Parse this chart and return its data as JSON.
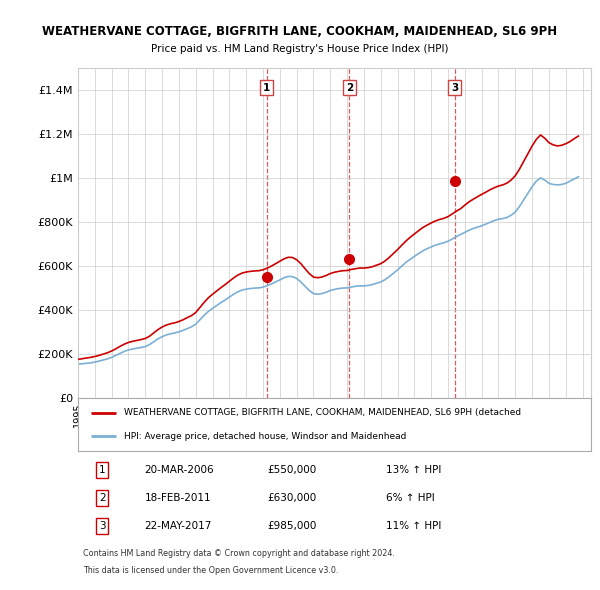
{
  "title": "WEATHERVANE COTTAGE, BIGFRITH LANE, COOKHAM, MAIDENHEAD, SL6 9PH",
  "subtitle": "Price paid vs. HM Land Registry's House Price Index (HPI)",
  "xlim_start": 1995.0,
  "xlim_end": 2025.5,
  "ylim": [
    0,
    1500000
  ],
  "yticks": [
    0,
    200000,
    400000,
    600000,
    800000,
    1000000,
    1200000,
    1400000
  ],
  "ytick_labels": [
    "£0",
    "£200K",
    "£400K",
    "£600K",
    "£800K",
    "£1M",
    "£1.2M",
    "£1.4M"
  ],
  "line_color_red": "#cc0000",
  "line_color_blue": "#7bafd4",
  "purchase_dates": [
    2006.22,
    2011.13,
    2017.39
  ],
  "purchase_prices": [
    550000,
    630000,
    985000
  ],
  "purchase_labels": [
    "1",
    "2",
    "3"
  ],
  "vline_color": "#cc4444",
  "grid_color": "#cccccc",
  "background_color": "#ffffff",
  "legend_label_red": "WEATHERVANE COTTAGE, BIGFRITH LANE, COOKHAM, MAIDENHEAD, SL6 9PH (detached",
  "legend_label_blue": "HPI: Average price, detached house, Windsor and Maidenhead",
  "table_rows": [
    [
      "1",
      "20-MAR-2006",
      "£550,000",
      "13% ↑ HPI"
    ],
    [
      "2",
      "18-FEB-2011",
      "£630,000",
      "6% ↑ HPI"
    ],
    [
      "3",
      "22-MAY-2017",
      "£985,000",
      "11% ↑ HPI"
    ]
  ],
  "footnote1": "Contains HM Land Registry data © Crown copyright and database right 2024.",
  "footnote2": "This data is licensed under the Open Government Licence v3.0.",
  "hpi_years": [
    1995.0,
    1995.25,
    1995.5,
    1995.75,
    1996.0,
    1996.25,
    1996.5,
    1996.75,
    1997.0,
    1997.25,
    1997.5,
    1997.75,
    1998.0,
    1998.25,
    1998.5,
    1998.75,
    1999.0,
    1999.25,
    1999.5,
    1999.75,
    2000.0,
    2000.25,
    2000.5,
    2000.75,
    2001.0,
    2001.25,
    2001.5,
    2001.75,
    2002.0,
    2002.25,
    2002.5,
    2002.75,
    2003.0,
    2003.25,
    2003.5,
    2003.75,
    2004.0,
    2004.25,
    2004.5,
    2004.75,
    2005.0,
    2005.25,
    2005.5,
    2005.75,
    2006.0,
    2006.25,
    2006.5,
    2006.75,
    2007.0,
    2007.25,
    2007.5,
    2007.75,
    2008.0,
    2008.25,
    2008.5,
    2008.75,
    2009.0,
    2009.25,
    2009.5,
    2009.75,
    2010.0,
    2010.25,
    2010.5,
    2010.75,
    2011.0,
    2011.25,
    2011.5,
    2011.75,
    2012.0,
    2012.25,
    2012.5,
    2012.75,
    2013.0,
    2013.25,
    2013.5,
    2013.75,
    2014.0,
    2014.25,
    2014.5,
    2014.75,
    2015.0,
    2015.25,
    2015.5,
    2015.75,
    2016.0,
    2016.25,
    2016.5,
    2016.75,
    2017.0,
    2017.25,
    2017.5,
    2017.75,
    2018.0,
    2018.25,
    2018.5,
    2018.75,
    2019.0,
    2019.25,
    2019.5,
    2019.75,
    2020.0,
    2020.25,
    2020.5,
    2020.75,
    2021.0,
    2021.25,
    2021.5,
    2021.75,
    2022.0,
    2022.25,
    2022.5,
    2022.75,
    2023.0,
    2023.25,
    2023.5,
    2023.75,
    2024.0,
    2024.25,
    2024.5,
    2024.75
  ],
  "hpi_values": [
    153000,
    155000,
    157000,
    159000,
    163000,
    167000,
    172000,
    177000,
    184000,
    193000,
    202000,
    211000,
    218000,
    222000,
    226000,
    229000,
    233000,
    242000,
    255000,
    268000,
    278000,
    286000,
    291000,
    295000,
    300000,
    307000,
    315000,
    323000,
    335000,
    355000,
    375000,
    393000,
    407000,
    420000,
    433000,
    445000,
    458000,
    471000,
    482000,
    490000,
    494000,
    497000,
    499000,
    500000,
    503000,
    510000,
    518000,
    527000,
    536000,
    546000,
    552000,
    551000,
    543000,
    527000,
    507000,
    488000,
    474000,
    471000,
    474000,
    480000,
    488000,
    493000,
    497000,
    499000,
    500000,
    504000,
    507000,
    509000,
    509000,
    511000,
    515000,
    521000,
    527000,
    537000,
    551000,
    566000,
    582000,
    599000,
    616000,
    630000,
    643000,
    656000,
    668000,
    678000,
    686000,
    694000,
    700000,
    705000,
    712000,
    722000,
    733000,
    743000,
    752000,
    762000,
    770000,
    776000,
    782000,
    790000,
    798000,
    806000,
    812000,
    815000,
    820000,
    830000,
    845000,
    870000,
    900000,
    930000,
    960000,
    985000,
    1000000,
    990000,
    975000,
    970000,
    968000,
    970000,
    975000,
    985000,
    995000,
    1005000
  ],
  "red_years": [
    1995.0,
    1995.25,
    1995.5,
    1995.75,
    1996.0,
    1996.25,
    1996.5,
    1996.75,
    1997.0,
    1997.25,
    1997.5,
    1997.75,
    1998.0,
    1998.25,
    1998.5,
    1998.75,
    1999.0,
    1999.25,
    1999.5,
    1999.75,
    2000.0,
    2000.25,
    2000.5,
    2000.75,
    2001.0,
    2001.25,
    2001.5,
    2001.75,
    2002.0,
    2002.25,
    2002.5,
    2002.75,
    2003.0,
    2003.25,
    2003.5,
    2003.75,
    2004.0,
    2004.25,
    2004.5,
    2004.75,
    2005.0,
    2005.25,
    2005.5,
    2005.75,
    2006.0,
    2006.25,
    2006.5,
    2006.75,
    2007.0,
    2007.25,
    2007.5,
    2007.75,
    2008.0,
    2008.25,
    2008.5,
    2008.75,
    2009.0,
    2009.25,
    2009.5,
    2009.75,
    2010.0,
    2010.25,
    2010.5,
    2010.75,
    2011.0,
    2011.25,
    2011.5,
    2011.75,
    2012.0,
    2012.25,
    2012.5,
    2012.75,
    2013.0,
    2013.25,
    2013.5,
    2013.75,
    2014.0,
    2014.25,
    2014.5,
    2014.75,
    2015.0,
    2015.25,
    2015.5,
    2015.75,
    2016.0,
    2016.25,
    2016.5,
    2016.75,
    2017.0,
    2017.25,
    2017.5,
    2017.75,
    2018.0,
    2018.25,
    2018.5,
    2018.75,
    2019.0,
    2019.25,
    2019.5,
    2019.75,
    2020.0,
    2020.25,
    2020.5,
    2020.75,
    2021.0,
    2021.25,
    2021.5,
    2021.75,
    2022.0,
    2022.25,
    2022.5,
    2022.75,
    2023.0,
    2023.25,
    2023.5,
    2023.75,
    2024.0,
    2024.25,
    2024.5,
    2024.75
  ],
  "red_values": [
    175000,
    178000,
    181000,
    184000,
    188000,
    193000,
    199000,
    205000,
    213000,
    223000,
    234000,
    244000,
    252000,
    257000,
    261000,
    265000,
    270000,
    280000,
    295000,
    310000,
    322000,
    331000,
    337000,
    341000,
    347000,
    355000,
    365000,
    374000,
    388000,
    411000,
    434000,
    455000,
    471000,
    486000,
    501000,
    515000,
    530000,
    545000,
    558000,
    567000,
    572000,
    575000,
    577000,
    578000,
    582000,
    590000,
    599000,
    610000,
    621000,
    632000,
    639000,
    638000,
    628000,
    610000,
    587000,
    565000,
    549000,
    546000,
    549000,
    556000,
    565000,
    571000,
    575000,
    578000,
    579000,
    584000,
    587000,
    590000,
    590000,
    592000,
    596000,
    603000,
    610000,
    622000,
    638000,
    656000,
    674000,
    694000,
    713000,
    730000,
    745000,
    760000,
    774000,
    785000,
    795000,
    804000,
    811000,
    816000,
    824000,
    836000,
    849000,
    860000,
    876000,
    891000,
    903000,
    914000,
    925000,
    935000,
    946000,
    955000,
    963000,
    968000,
    976000,
    990000,
    1010000,
    1040000,
    1075000,
    1110000,
    1145000,
    1175000,
    1195000,
    1180000,
    1160000,
    1150000,
    1145000,
    1148000,
    1155000,
    1165000,
    1178000,
    1190000
  ]
}
